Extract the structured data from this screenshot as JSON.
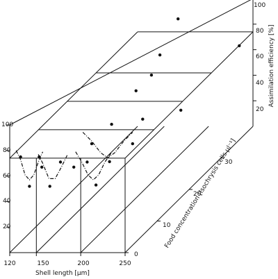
{
  "chart_data": {
    "type": "scatter",
    "projection": "3d-oblique",
    "title": "",
    "x_axis": {
      "label": "Shell length [µm]",
      "range": [
        120,
        250
      ],
      "ticks": [
        120,
        150,
        200,
        250
      ],
      "tick_labels": [
        "120",
        "150",
        "200",
        "250"
      ]
    },
    "z_axis": {
      "label": "Food concentration [Isochrysis cells µl⁻¹]",
      "range": [
        0,
        40
      ],
      "ticks": [
        0,
        10,
        20,
        30
      ],
      "tick_labels": [
        "0",
        "10",
        "20",
        "30"
      ]
    },
    "y_axis_front": {
      "label": "",
      "range": [
        0,
        100
      ],
      "ticks": [
        20,
        40,
        60,
        80,
        100
      ],
      "tick_labels": [
        "20",
        "40",
        "60",
        "80",
        "100"
      ]
    },
    "y_axis_back": {
      "label": "Assimilation efficiency [%]",
      "range": [
        0,
        100
      ],
      "ticks": [
        20,
        40,
        60,
        80,
        100
      ],
      "tick_labels": [
        "20",
        "40",
        "60",
        "80",
        "100"
      ]
    },
    "series": [
      {
        "food_concentration": 2,
        "points": [
          {
            "x": 125,
            "y": 70
          },
          {
            "x": 135,
            "y": 47
          }
        ],
        "curve": [
          [
            120,
            75
          ],
          [
            125,
            68
          ],
          [
            130,
            56
          ],
          [
            135,
            52
          ],
          [
            140,
            56
          ],
          [
            145,
            66
          ],
          [
            150,
            74
          ]
        ]
      },
      {
        "food_concentration": 2,
        "points": [
          {
            "x": 146,
            "y": 70
          },
          {
            "x": 149,
            "y": 62
          },
          {
            "x": 158,
            "y": 47
          },
          {
            "x": 170,
            "y": 66
          }
        ],
        "curve": [
          [
            145,
            72
          ],
          [
            150,
            65
          ],
          [
            157,
            53
          ],
          [
            164,
            53
          ],
          [
            171,
            62
          ],
          [
            178,
            72
          ]
        ]
      },
      {
        "food_concentration": 2,
        "points": [
          {
            "x": 185,
            "y": 62
          },
          {
            "x": 200,
            "y": 66
          },
          {
            "x": 210,
            "y": 48
          }
        ],
        "curve": [
          [
            187,
            74
          ],
          [
            194,
            66
          ],
          [
            201,
            56
          ],
          [
            207,
            52
          ],
          [
            213,
            56
          ],
          [
            220,
            66
          ],
          [
            228,
            74
          ]
        ]
      },
      {
        "food_concentration": 9,
        "points": [
          {
            "x": 180,
            "y": 63
          },
          {
            "x": 200,
            "y": 49
          },
          {
            "x": 226,
            "y": 63
          }
        ],
        "curve": [
          [
            170,
            72
          ],
          [
            180,
            65
          ],
          [
            190,
            56
          ],
          [
            198,
            52
          ],
          [
            206,
            56
          ],
          [
            216,
            65
          ],
          [
            226,
            72
          ]
        ]
      },
      {
        "food_concentration": 18,
        "points": [
          {
            "x": 170,
            "y": 56
          },
          {
            "x": 205,
            "y": 60
          },
          {
            "x": 248,
            "y": 67
          }
        ],
        "curve": []
      },
      {
        "food_concentration": 27,
        "points": [
          {
            "x": 165,
            "y": 60
          },
          {
            "x": 192,
            "y": 88
          }
        ],
        "curve": []
      },
      {
        "food_concentration": 36,
        "points": [
          {
            "x": 150,
            "y": 50
          },
          {
            "x": 180,
            "y": 94
          },
          {
            "x": 249,
            "y": 73
          }
        ],
        "curve": []
      }
    ],
    "grid": false,
    "legend": "none"
  }
}
